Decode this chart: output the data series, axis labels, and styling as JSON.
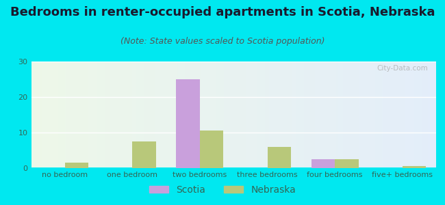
{
  "title": "Bedrooms in renter-occupied apartments in Scotia, Nebraska",
  "subtitle": "(Note: State values scaled to Scotia population)",
  "categories": [
    "no bedroom",
    "one bedroom",
    "two bedrooms",
    "three bedrooms",
    "four bedrooms",
    "five+ bedrooms"
  ],
  "scotia_values": [
    0,
    0,
    25,
    0,
    2.5,
    0
  ],
  "nebraska_values": [
    1.5,
    7.5,
    10.5,
    6,
    2.5,
    0.5
  ],
  "scotia_color": "#c9a0dc",
  "nebraska_color": "#b8c87a",
  "background_outer": "#00e8f0",
  "ylim": [
    0,
    30
  ],
  "yticks": [
    0,
    10,
    20,
    30
  ],
  "bar_width": 0.35,
  "title_fontsize": 13,
  "subtitle_fontsize": 9,
  "tick_fontsize": 8,
  "legend_fontsize": 10,
  "tick_color": "#336655",
  "title_color": "#1a1a2e",
  "subtitle_color": "#555555"
}
